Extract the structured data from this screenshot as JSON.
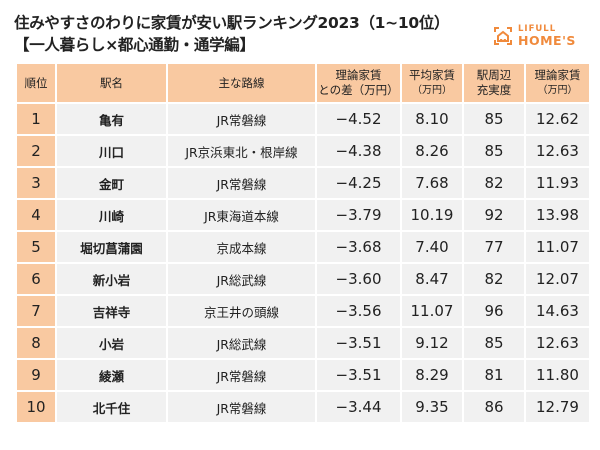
{
  "title": {
    "line1": "住みやすさのわりに家賃が安い駅ランキング2023（1~10位）",
    "line2": "【一人暮らし×都心通勤・通学編】"
  },
  "logo": {
    "top": "LIFULL",
    "bottom": "HOME'S",
    "color": "#F08A3C"
  },
  "colors": {
    "header_bg": "#F9C9A1",
    "row_bg": "#F1F1F1"
  },
  "table": {
    "headers": [
      {
        "main": "順位",
        "sub": ""
      },
      {
        "main": "駅名",
        "sub": ""
      },
      {
        "main": "主な路線",
        "sub": ""
      },
      {
        "main": "理論家賃",
        "sub": "との差（万円）"
      },
      {
        "main": "平均家賃",
        "sub": "（万円）"
      },
      {
        "main": "駅周辺",
        "sub": "充実度"
      },
      {
        "main": "理論家賃",
        "sub": "（万円）"
      }
    ],
    "rows": [
      [
        "1",
        "亀有",
        "JR常磐線",
        "−4.52",
        "8.10",
        "85",
        "12.62"
      ],
      [
        "2",
        "川口",
        "JR京浜東北・根岸線",
        "−4.38",
        "8.26",
        "85",
        "12.63"
      ],
      [
        "3",
        "金町",
        "JR常磐線",
        "−4.25",
        "7.68",
        "82",
        "11.93"
      ],
      [
        "4",
        "川崎",
        "JR東海道本線",
        "−3.79",
        "10.19",
        "92",
        "13.98"
      ],
      [
        "5",
        "堀切菖蒲園",
        "京成本線",
        "−3.68",
        "7.40",
        "77",
        "11.07"
      ],
      [
        "6",
        "新小岩",
        "JR総武線",
        "−3.60",
        "8.47",
        "82",
        "12.07"
      ],
      [
        "7",
        "吉祥寺",
        "京王井の頭線",
        "−3.56",
        "11.07",
        "96",
        "14.63"
      ],
      [
        "8",
        "小岩",
        "JR総武線",
        "−3.51",
        "9.12",
        "85",
        "12.63"
      ],
      [
        "9",
        "綾瀬",
        "JR常磐線",
        "−3.51",
        "8.29",
        "81",
        "11.80"
      ],
      [
        "10",
        "北千住",
        "JR常磐線",
        "−3.44",
        "9.35",
        "86",
        "12.79"
      ]
    ]
  }
}
